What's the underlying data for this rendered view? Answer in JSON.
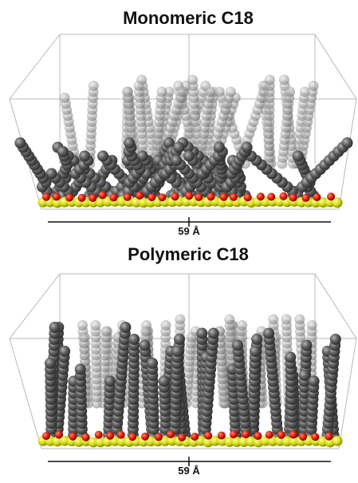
{
  "panels": [
    {
      "title": "Monomeric C18",
      "scale_label": "59 Å"
    },
    {
      "title": "Polymeric C18",
      "scale_label": "59 Å"
    }
  ]
}
